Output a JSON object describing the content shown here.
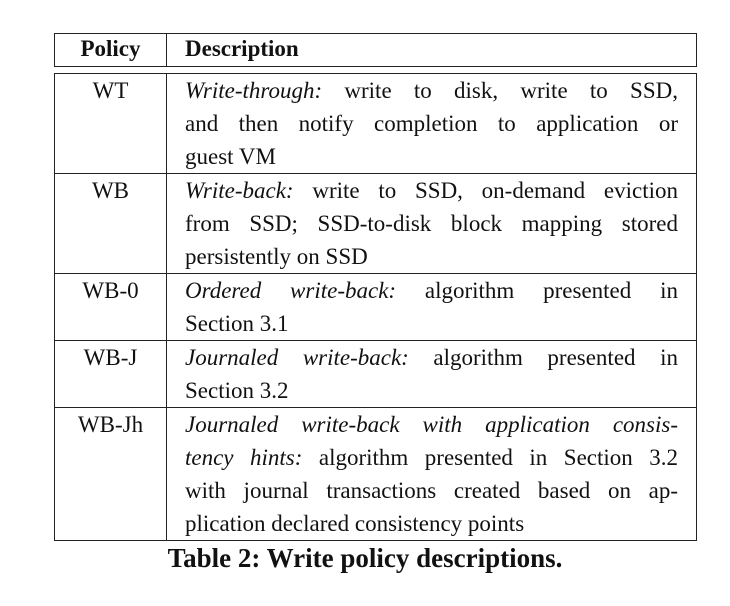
{
  "table": {
    "header": {
      "policy": "Policy",
      "description": "Description"
    },
    "rows": [
      {
        "policy": "WT",
        "lines": [
          {
            "term": "Write-through:",
            "text": " write to disk, write to SSD,"
          },
          {
            "term": "",
            "text": "and then notify completion to application or"
          },
          {
            "term": "",
            "text": "guest VM"
          }
        ]
      },
      {
        "policy": "WB",
        "lines": [
          {
            "term": "Write-back:",
            "text": " write to SSD, on-demand eviction"
          },
          {
            "term": "",
            "text": "from SSD; SSD-to-disk block mapping stored"
          },
          {
            "term": "",
            "text": "persistently on SSD"
          }
        ]
      },
      {
        "policy": "WB-0",
        "lines": [
          {
            "term": "Ordered write-back:",
            "text": " algorithm presented in"
          },
          {
            "term": "",
            "text": "Section 3.1"
          }
        ]
      },
      {
        "policy": "WB-J",
        "lines": [
          {
            "term": "Journaled write-back:",
            "text": " algorithm presented in"
          },
          {
            "term": "",
            "text": "Section 3.2"
          }
        ]
      },
      {
        "policy": "WB-Jh",
        "lines": [
          {
            "term": "Journaled write-back with application consis-",
            "text": ""
          },
          {
            "term": "tency hints:",
            "text": " algorithm presented in Section 3.2"
          },
          {
            "term": "",
            "text": "with journal transactions created based on ap-"
          },
          {
            "term": "",
            "text": "plication declared consistency points"
          }
        ]
      }
    ]
  },
  "caption": "Table 2:  Write policy descriptions."
}
